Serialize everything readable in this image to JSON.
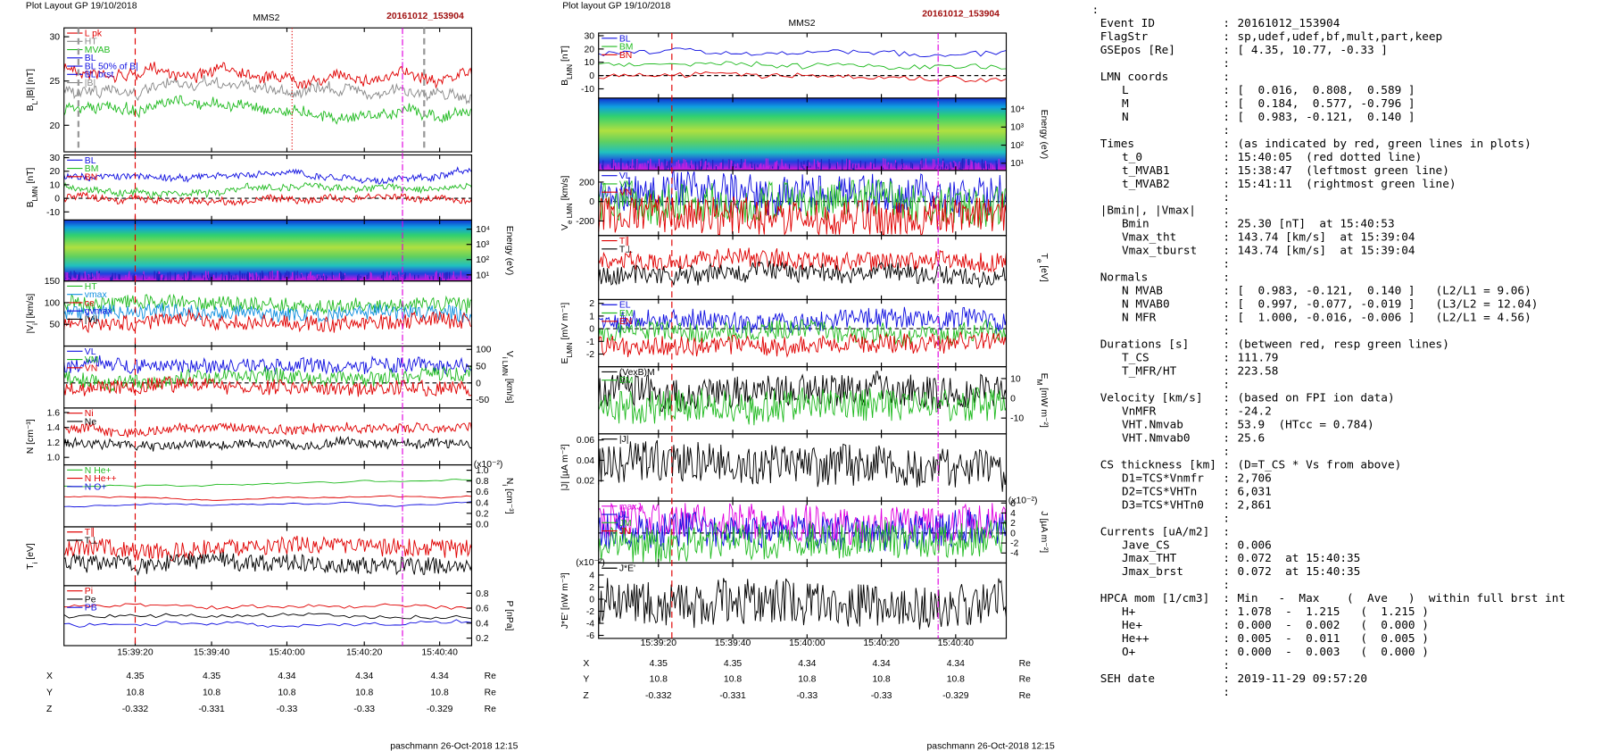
{
  "plots": [
    {
      "header": "Plot Layout GP 19/10/2018",
      "spacecraft": "MMS2",
      "event": "20161012_153904",
      "panels": [
        {
          "ylabel": [
            "B",
            "L",
            ",|B| [nT]"
          ],
          "side": "left",
          "ylim": [
            17,
            31
          ],
          "yticks": [
            30,
            25,
            20
          ],
          "legend": [
            {
              "name": "L pk",
              "color": "#e00000"
            },
            {
              "name": "HT",
              "color": "#888888"
            },
            {
              "name": "MVAB",
              "color": "#22bb22"
            },
            {
              "name": "BL",
              "color": "#1010e0"
            },
            {
              "name": "BL 50% of B|",
              "color": "#1010e0"
            },
            {
              "name": "BL brst",
              "color": "#1010e0"
            },
            {
              "name": "|B|",
              "color": "#888888"
            }
          ]
        },
        {
          "ylabel": [
            "B",
            "LMN",
            " [nT]"
          ],
          "side": "left",
          "ylim": [
            -16,
            32
          ],
          "yticks": [
            30,
            20,
            10,
            0,
            -10
          ],
          "legend": [
            {
              "name": "BL",
              "color": "#1010e0"
            },
            {
              "name": "BM",
              "color": "#22bb22"
            },
            {
              "name": "BN",
              "color": "#e00000"
            }
          ]
        },
        {
          "ylabel": [
            "Energy (eV)"
          ],
          "side": "right",
          "spectrogram": true,
          "ylim": [
            0.6,
            4.6
          ],
          "yticks": [
            {
              "value": 4,
              "label": "10⁴"
            },
            {
              "value": 3,
              "label": "10³"
            },
            {
              "value": 2,
              "label": "10²"
            },
            {
              "value": 1,
              "label": "10¹"
            }
          ]
        },
        {
          "ylabel": [
            "|V",
            "i",
            "| [km/s]"
          ],
          "side": "left",
          "ylim": [
            0,
            150
          ],
          "yticks": [
            150,
            100,
            50
          ],
          "legend": [
            {
              "name": "HT",
              "color": "#22bb22"
            },
            {
              "name": "vmax",
              "color": "#1090e0"
            },
            {
              "name": "ce",
              "color": "#e00000"
            },
            {
              "name": "gvmax",
              "color": "#1010e0"
            },
            {
              "name": "|Vi|",
              "color": "#000000"
            }
          ]
        },
        {
          "ylabel": [
            "V",
            "i LMN",
            " [km/s]"
          ],
          "side": "right",
          "ylim": [
            -75,
            110
          ],
          "yticks": [
            100,
            50,
            0,
            -50
          ],
          "legend": [
            {
              "name": "VL",
              "color": "#1010e0"
            },
            {
              "name": "VM",
              "color": "#22bb22"
            },
            {
              "name": "VN",
              "color": "#e00000"
            }
          ]
        },
        {
          "ylabel": [
            "N [cm⁻³]"
          ],
          "side": "left",
          "ylim": [
            0.9,
            1.66
          ],
          "yticks": [
            1.6,
            1.4,
            1.2,
            {
              "value": 1,
              "label": "1.0"
            }
          ],
          "legend": [
            {
              "name": "Ni",
              "color": "#e00000"
            },
            {
              "name": "Ne",
              "color": "#000000"
            }
          ]
        },
        {
          "ylabel": [
            "N",
            "i",
            " [cm⁻³]"
          ],
          "side": "right",
          "note": "(x10⁻²)",
          "ylim": [
            -0.05,
            1.1
          ],
          "yticks": [
            {
              "value": 1,
              "label": "1.0"
            },
            0.8,
            0.6,
            0.4,
            0.2,
            {
              "value": 0,
              "label": "0.0"
            }
          ],
          "legend": [
            {
              "name": "N He+",
              "color": "#22bb22"
            },
            {
              "name": "N He++",
              "color": "#e00000"
            },
            {
              "name": "N O+",
              "color": "#1010e0"
            }
          ]
        },
        {
          "ylabel": [
            "T",
            "i",
            " [eV]"
          ],
          "side": "left",
          "ylim": [
            0,
            1
          ],
          "yticks": [],
          "legend": [
            {
              "name": "T∥",
              "color": "#e00000"
            },
            {
              "name": "T⊥",
              "color": "#000000"
            }
          ]
        },
        {
          "ylabel": [
            "P [nPa]"
          ],
          "side": "right",
          "ylim": [
            0.1,
            0.9
          ],
          "yticks": [
            0.8,
            0.6,
            0.4,
            0.2
          ],
          "legend": [
            {
              "name": "Pi",
              "color": "#e00000"
            },
            {
              "name": "Pe",
              "color": "#000000"
            },
            {
              "name": "PB",
              "color": "#1010e0"
            }
          ]
        }
      ],
      "xticks": [
        "15:39:20",
        "15:39:40",
        "15:40:00",
        "15:40:20",
        "15:40:40"
      ],
      "ephemeris": [
        {
          "name": "X",
          "values": [
            "4.35",
            "4.35",
            "4.34",
            "4.34",
            "4.34"
          ],
          "unit": "Re"
        },
        {
          "name": "Y",
          "values": [
            "10.8",
            "10.8",
            "10.8",
            "10.8",
            "10.8"
          ],
          "unit": "Re"
        },
        {
          "name": "Z",
          "values": [
            "-0.332",
            "-0.331",
            "-0.33",
            "-0.33",
            "-0.329"
          ],
          "unit": "Re"
        }
      ],
      "footer": "paschmann 26-Oct-2018 12:15"
    },
    {
      "header": "Plot layout GP 19/10/2018",
      "spacecraft": "MMS2",
      "event": "20161012_153904",
      "panels": [
        {
          "ylabel": [
            "B",
            "LMN",
            " [nT]"
          ],
          "side": "left",
          "ylim": [
            -17,
            32
          ],
          "yticks": [
            30,
            20,
            10,
            0,
            -10
          ],
          "legend": [
            {
              "name": "BL",
              "color": "#1010e0"
            },
            {
              "name": "BM",
              "color": "#22bb22"
            },
            {
              "name": "BN",
              "color": "#e00000"
            }
          ]
        },
        {
          "ylabel": [
            "Energy (eV)"
          ],
          "side": "right",
          "spectrogram": true,
          "ylim": [
            0.6,
            4.6
          ],
          "yticks": [
            {
              "value": 4,
              "label": "10⁴"
            },
            {
              "value": 3,
              "label": "10³"
            },
            {
              "value": 2,
              "label": "10²"
            },
            {
              "value": 1,
              "label": "10¹"
            }
          ]
        },
        {
          "ylabel": [
            "V",
            "e LMN",
            " [km/s]"
          ],
          "side": "left",
          "ylim": [
            -350,
            320
          ],
          "yticks": [
            200,
            0,
            -200
          ],
          "legend": [
            {
              "name": "VL",
              "color": "#1010e0"
            },
            {
              "name": "VM",
              "color": "#22bb22"
            },
            {
              "name": "VN",
              "color": "#e00000"
            }
          ]
        },
        {
          "ylabel": [
            "T",
            "e",
            " [eV]"
          ],
          "side": "right",
          "ylim": [
            0,
            1
          ],
          "yticks": [],
          "legend": [
            {
              "name": "T∥",
              "color": "#e00000"
            },
            {
              "name": "T⊥",
              "color": "#000000"
            }
          ]
        },
        {
          "ylabel": [
            "E",
            "LMN",
            " [mV m⁻¹]"
          ],
          "side": "left",
          "ylim": [
            -3,
            2.3
          ],
          "yticks": [
            2,
            1,
            0,
            -1,
            -2
          ],
          "legend": [
            {
              "name": "EL",
              "color": "#1010e0"
            },
            {
              "name": "EM",
              "color": "#22bb22"
            },
            {
              "name": "EN",
              "color": "#e00000"
            }
          ]
        },
        {
          "ylabel": [
            "E",
            "M",
            " [mW m⁻²]"
          ],
          "side": "right",
          "ylim": [
            -18,
            16
          ],
          "yticks": [
            10,
            0,
            -10
          ],
          "legend": [
            {
              "name": "(VexB)M",
              "color": "#000000"
            },
            {
              "name": "EM",
              "color": "#22bb22"
            }
          ]
        },
        {
          "ylabel": [
            "|J| [µA m⁻²]"
          ],
          "side": "left",
          "ylim": [
            0,
            0.066
          ],
          "yticks": [
            0.06,
            0.04,
            0.02
          ],
          "legend": [
            {
              "name": "|J|",
              "color": "#000000"
            }
          ]
        },
        {
          "ylabel": [
            "J [µA m⁻²]"
          ],
          "side": "right",
          "note": "(x10⁻²)",
          "ylim": [
            -6,
            6.4
          ],
          "yticks": [
            6,
            4,
            2,
            0,
            -2,
            -4
          ],
          "legend": [
            {
              "name": "maxJ",
              "color": "#e000e0"
            },
            {
              "name": "JL",
              "color": "#1010e0"
            },
            {
              "name": "JM",
              "color": "#22bb22"
            },
            {
              "name": "JN",
              "color": "#e00000"
            }
          ]
        },
        {
          "ylabel": [
            "J*E' [nW m⁻³]"
          ],
          "side": "left",
          "note": "(x10⁻²)",
          "ylim": [
            -6.5,
            6
          ],
          "yticks": [
            4,
            2,
            0,
            -2,
            -4,
            -6
          ],
          "legend": [
            {
              "name": "J*E'",
              "color": "#000000"
            }
          ]
        }
      ],
      "xticks": [
        "15:39:20",
        "15:39:40",
        "15:40:00",
        "15:40:20",
        "15:40:40"
      ],
      "ephemeris": [
        {
          "name": "X",
          "values": [
            "4.35",
            "4.35",
            "4.34",
            "4.34",
            "4.34"
          ],
          "unit": "Re"
        },
        {
          "name": "Y",
          "values": [
            "10.8",
            "10.8",
            "10.8",
            "10.8",
            "10.8"
          ],
          "unit": "Re"
        },
        {
          "name": "Z",
          "values": [
            "-0.332",
            "-0.331",
            "-0.33",
            "-0.33",
            "-0.329"
          ],
          "unit": "Re"
        }
      ],
      "footer": "paschmann 26-Oct-2018 12:15"
    }
  ],
  "info": [
    [
      {
        "label": "Event ID",
        "value": "20161012_153904"
      },
      {
        "label": "FlagStr",
        "value": "sp,udef,udef,bf,mult,part,keep"
      },
      {
        "label": "GSEpos [Re]",
        "value": "[ 4.35, 10.77, -0.33 ]"
      }
    ],
    [
      {
        "label": "LMN coords",
        "items": [
          {
            "label": "L",
            "value": "[  0.016,  0.808,  0.589 ]"
          },
          {
            "label": "M",
            "value": "[  0.184,  0.577, -0.796 ]"
          },
          {
            "label": "N",
            "value": "[  0.983, -0.121,  0.140 ]"
          }
        ]
      }
    ],
    [
      {
        "label": "Times",
        "value": "(as indicated by red, green lines in plots)",
        "items": [
          {
            "label": "t_0",
            "value": "15:40:05  (red dotted line)"
          },
          {
            "label": "t_MVAB1",
            "value": "15:38:47  (leftmost green line)"
          },
          {
            "label": "t_MVAB2",
            "value": "15:41:11  (rightmost green line)"
          }
        ]
      }
    ],
    [
      {
        "label": "|Bmin|, |Vmax|",
        "items": [
          {
            "label": "Bmin",
            "value": "25.30 [nT]  at 15:40:53"
          },
          {
            "label": "Vmax_tht",
            "value": "143.74 [km/s]  at 15:39:04"
          },
          {
            "label": "Vmax_tburst",
            "value": "143.74 [km/s]  at 15:39:04"
          }
        ]
      }
    ],
    [
      {
        "label": "Normals",
        "items": [
          {
            "label": "N MVAB",
            "value": "[  0.983, -0.121,  0.140 ]   (L2/L1 = 9.06)"
          },
          {
            "label": "N MVAB0",
            "value": "[  0.997, -0.077, -0.019 ]   (L3/L2 = 12.04)"
          },
          {
            "label": "N MFR",
            "value": "[  1.000, -0.016, -0.006 ]   (L2/L1 = 4.56)"
          }
        ]
      }
    ],
    [
      {
        "label": "Durations [s]",
        "value": "(between red, resp green lines)",
        "items": [
          {
            "label": "T_CS",
            "value": "111.79"
          },
          {
            "label": "T_MFR/HT",
            "value": "223.58"
          }
        ]
      }
    ],
    [
      {
        "label": "Velocity [km/s]",
        "value": "(based on FPI ion data)",
        "items": [
          {
            "label": "VnMFR",
            "value": "-24.2"
          },
          {
            "label": "VHT.Nmvab",
            "value": "53.9  (HTcc = 0.784)"
          },
          {
            "label": "VHT.Nmvab0",
            "value": "25.6"
          }
        ]
      }
    ],
    [
      {
        "label": "CS thickness [km]",
        "value": "(D=T_CS * Vs from above)",
        "items": [
          {
            "label": "D1=TCS*Vnmfr",
            "value": "2,706"
          },
          {
            "label": "D2=TCS*VHTn",
            "value": "6,031"
          },
          {
            "label": "D3=TCS*VHTn0",
            "value": "2,861"
          }
        ]
      }
    ],
    [
      {
        "label": "Currents [uA/m2]",
        "items": [
          {
            "label": "Jave_CS",
            "value": "0.006"
          },
          {
            "label": "Jmax_THT",
            "value": "0.072  at 15:40:35"
          },
          {
            "label": "Jmax_brst",
            "value": "0.072  at 15:40:35"
          }
        ]
      }
    ],
    [
      {
        "label": "HPCA mom [1/cm3]",
        "value": "Min   -  Max    (  Ave   )  within full brst int",
        "items": [
          {
            "label": "H+",
            "value": "1.078  -  1.215   (  1.215 )"
          },
          {
            "label": "He+",
            "value": "0.000  -  0.002   (  0.000 )"
          },
          {
            "label": "He++",
            "value": "0.005  -  0.011   (  0.005 )"
          },
          {
            "label": "O+",
            "value": "0.000  -  0.003   (  0.000 )"
          }
        ]
      }
    ],
    [
      {
        "label": "SEH date",
        "value": "2019-11-29 09:57:20"
      }
    ]
  ]
}
